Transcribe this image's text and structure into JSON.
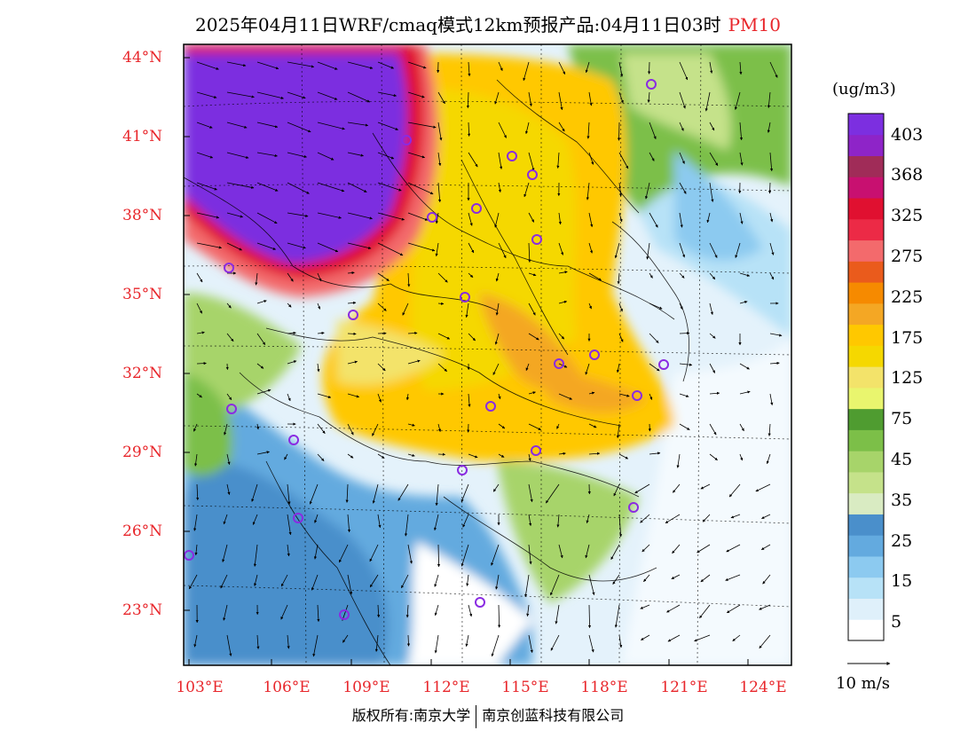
{
  "header": {
    "title": "2025年04月11日WRF/cmaq模式12km预报产品:04月11日03时",
    "species": "PM10"
  },
  "axes": {
    "lat_ticks": [
      "44°N",
      "41°N",
      "38°N",
      "35°N",
      "32°N",
      "29°N",
      "26°N",
      "23°N"
    ],
    "lon_ticks": [
      "103°E",
      "106°E",
      "109°E",
      "112°E",
      "115°E",
      "118°E",
      "121°E",
      "124°E"
    ]
  },
  "colorbar": {
    "units": "(ug/m3)",
    "labels": [
      "403",
      "368",
      "325",
      "275",
      "225",
      "175",
      "125",
      "75",
      "45",
      "35",
      "25",
      "15",
      "5"
    ],
    "colors": [
      "#ffffff",
      "#dff0fa",
      "#b7e2f7",
      "#8ccaf0",
      "#63aadf",
      "#4a8fcb",
      "#d9ebc2",
      "#c5e28a",
      "#a7d46a",
      "#7cbf48",
      "#4f9c30",
      "#e9f56e",
      "#f3e36a",
      "#f5d800",
      "#ffc800",
      "#f4a724",
      "#f68a00",
      "#ea5b1c",
      "#f36a6c",
      "#ec2a46",
      "#e01030",
      "#c81070",
      "#a02c58",
      "#8e24c8",
      "#7c2fe0"
    ]
  },
  "legend": {
    "vector_label": "10 m/s"
  },
  "footer": {
    "copyright": "版权所有:南京大学",
    "company": "南京创蓝科技有限公司"
  },
  "map": {
    "city_marker_color": "#8a2be2",
    "tick_color": "#e8262b"
  }
}
